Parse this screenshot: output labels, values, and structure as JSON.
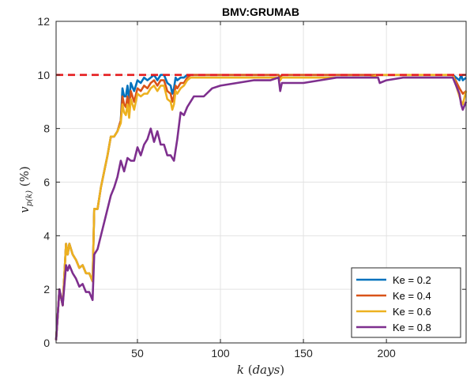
{
  "chart_data": {
    "type": "line",
    "title": "BMV:GRUMAB",
    "xlabel": "k (days)",
    "ylabel": "v_p(k) (%)",
    "xlim": [
      1,
      248
    ],
    "ylim": [
      0,
      12
    ],
    "x_ticks": [
      50,
      100,
      150,
      200
    ],
    "y_ticks": [
      0,
      2,
      4,
      6,
      8,
      10,
      12
    ],
    "grid": true,
    "legend_position": "bottom-right",
    "reference_line": {
      "y": 10,
      "color": "#e41a1c",
      "style": "dashed"
    },
    "series": [
      {
        "name": "Ke = 0.2",
        "color": "#0072BD",
        "x": [
          1,
          3,
          5,
          7,
          8,
          9,
          11,
          13,
          15,
          17,
          19,
          21,
          23,
          24,
          26,
          28,
          30,
          32,
          34,
          36,
          38,
          40,
          41,
          42,
          43,
          44,
          45,
          46,
          48,
          50,
          52,
          54,
          56,
          58,
          60,
          62,
          64,
          66,
          68,
          70,
          71,
          72,
          73,
          74,
          76,
          78,
          80,
          82,
          84,
          90,
          100,
          110,
          120,
          130,
          135,
          136,
          137,
          140,
          150,
          160,
          170,
          180,
          190,
          195,
          200,
          210,
          220,
          230,
          240,
          244,
          245,
          246,
          248
        ],
        "y": [
          0.1,
          2.0,
          1.4,
          3.7,
          3.3,
          3.7,
          3.3,
          3.1,
          2.8,
          2.9,
          2.6,
          2.6,
          2.3,
          5.0,
          5.0,
          5.8,
          6.4,
          7.0,
          7.7,
          7.7,
          7.9,
          8.3,
          9.5,
          9.2,
          9.2,
          9.6,
          9.0,
          9.7,
          9.4,
          9.8,
          9.7,
          9.9,
          9.8,
          9.9,
          10.0,
          9.8,
          10.0,
          10.0,
          9.7,
          9.6,
          9.3,
          9.5,
          9.9,
          9.8,
          9.9,
          9.9,
          10.0,
          10.0,
          10.0,
          10.0,
          10.0,
          10.0,
          10.0,
          10.0,
          10.0,
          9.9,
          10.0,
          10.0,
          10.0,
          10.0,
          10.0,
          10.0,
          10.0,
          10.0,
          10.0,
          10.0,
          10.0,
          10.0,
          10.0,
          9.8,
          10.0,
          9.8,
          9.9
        ]
      },
      {
        "name": "Ke = 0.4",
        "color": "#D95319",
        "x": [
          1,
          3,
          5,
          7,
          8,
          9,
          11,
          13,
          15,
          17,
          19,
          21,
          23,
          24,
          26,
          28,
          30,
          32,
          34,
          36,
          38,
          40,
          41,
          42,
          43,
          44,
          45,
          46,
          48,
          50,
          52,
          54,
          56,
          58,
          60,
          62,
          64,
          66,
          68,
          70,
          71,
          72,
          73,
          74,
          76,
          78,
          80,
          82,
          84,
          90,
          100,
          110,
          120,
          130,
          135,
          136,
          137,
          140,
          150,
          160,
          170,
          180,
          190,
          195,
          200,
          210,
          220,
          230,
          240,
          244,
          245,
          246,
          248
        ],
        "y": [
          0.1,
          2.0,
          1.4,
          3.7,
          3.3,
          3.7,
          3.3,
          3.1,
          2.8,
          2.9,
          2.6,
          2.6,
          2.3,
          5.0,
          5.0,
          5.8,
          6.4,
          7.0,
          7.7,
          7.7,
          7.9,
          8.3,
          9.2,
          8.9,
          8.8,
          9.2,
          8.7,
          9.4,
          9.0,
          9.5,
          9.4,
          9.6,
          9.5,
          9.7,
          9.8,
          9.6,
          9.8,
          9.8,
          9.4,
          9.3,
          9.0,
          9.2,
          9.6,
          9.5,
          9.7,
          9.7,
          9.9,
          10.0,
          10.0,
          10.0,
          10.0,
          10.0,
          10.0,
          10.0,
          10.0,
          9.9,
          10.0,
          10.0,
          10.0,
          10.0,
          10.0,
          10.0,
          10.0,
          10.0,
          10.0,
          10.0,
          10.0,
          10.0,
          10.0,
          9.5,
          9.4,
          9.3,
          9.4
        ]
      },
      {
        "name": "Ke = 0.6",
        "color": "#EDB120",
        "x": [
          1,
          3,
          5,
          7,
          8,
          9,
          11,
          13,
          15,
          17,
          19,
          21,
          23,
          24,
          26,
          28,
          30,
          32,
          34,
          36,
          38,
          40,
          41,
          42,
          43,
          44,
          45,
          46,
          48,
          50,
          52,
          54,
          56,
          58,
          60,
          62,
          64,
          66,
          68,
          70,
          71,
          72,
          73,
          74,
          76,
          78,
          80,
          82,
          84,
          90,
          100,
          110,
          120,
          130,
          135,
          136,
          137,
          140,
          150,
          160,
          170,
          180,
          190,
          195,
          200,
          210,
          220,
          230,
          240,
          244,
          245,
          246,
          248
        ],
        "y": [
          0.1,
          2.0,
          1.4,
          3.7,
          3.3,
          3.7,
          3.3,
          3.1,
          2.8,
          2.9,
          2.6,
          2.6,
          2.3,
          5.0,
          5.0,
          5.8,
          6.4,
          7.0,
          7.7,
          7.7,
          7.9,
          8.2,
          8.9,
          8.6,
          8.5,
          8.9,
          8.4,
          9.1,
          8.7,
          9.3,
          9.2,
          9.3,
          9.3,
          9.5,
          9.6,
          9.4,
          9.6,
          9.6,
          9.1,
          9.0,
          8.7,
          8.9,
          9.4,
          9.3,
          9.5,
          9.6,
          9.8,
          9.9,
          9.9,
          9.9,
          9.9,
          9.9,
          9.9,
          9.9,
          9.9,
          9.8,
          9.9,
          9.9,
          9.9,
          9.9,
          9.9,
          9.9,
          9.9,
          10.0,
          10.0,
          10.0,
          10.0,
          10.0,
          10.0,
          9.2,
          9.0,
          8.9,
          9.4
        ]
      },
      {
        "name": "Ke = 0.8",
        "color": "#7E2F8E",
        "x": [
          1,
          3,
          5,
          7,
          8,
          9,
          11,
          13,
          15,
          17,
          19,
          21,
          23,
          24,
          26,
          28,
          30,
          32,
          34,
          36,
          38,
          40,
          42,
          44,
          46,
          48,
          50,
          52,
          54,
          56,
          58,
          60,
          62,
          64,
          66,
          68,
          70,
          72,
          74,
          76,
          78,
          80,
          84,
          90,
          95,
          100,
          110,
          120,
          130,
          135,
          136,
          137,
          140,
          150,
          160,
          170,
          180,
          190,
          195,
          196,
          200,
          210,
          220,
          230,
          240,
          244,
          245,
          246,
          248
        ],
        "y": [
          0.1,
          2.0,
          1.4,
          2.9,
          2.7,
          2.9,
          2.6,
          2.4,
          2.1,
          2.2,
          1.9,
          1.9,
          1.6,
          3.3,
          3.5,
          4.0,
          4.5,
          5.0,
          5.5,
          5.8,
          6.2,
          6.8,
          6.4,
          6.9,
          6.8,
          6.8,
          7.3,
          7.0,
          7.4,
          7.6,
          8.0,
          7.5,
          7.9,
          7.4,
          7.4,
          7.0,
          7.0,
          6.8,
          7.6,
          8.6,
          8.5,
          8.8,
          9.2,
          9.2,
          9.5,
          9.6,
          9.7,
          9.8,
          9.8,
          9.9,
          9.4,
          9.7,
          9.7,
          9.7,
          9.8,
          9.9,
          9.9,
          9.9,
          9.9,
          9.7,
          9.8,
          9.9,
          9.9,
          9.9,
          9.9,
          9.3,
          8.9,
          8.7,
          9.0
        ]
      }
    ]
  }
}
